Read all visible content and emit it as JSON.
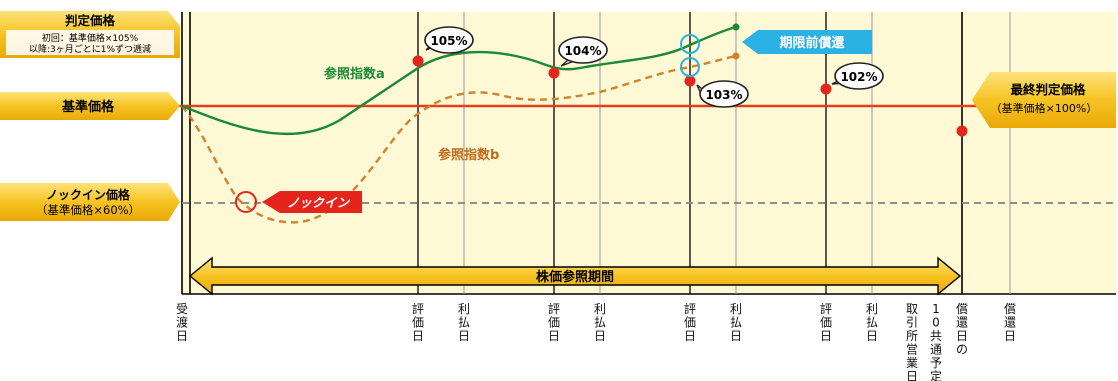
{
  "left_labels": {
    "judgment_title": "判定価格",
    "judgment_line1": "初回：基準価格×105%",
    "judgment_line2": "以降:3ヶ月ごとに1%ずつ逓減",
    "base_price": "基準価格",
    "knockin_line1": "ノックイン価格",
    "knockin_line2": "（基準価格×60%）"
  },
  "right_label": {
    "line1": "最終判定価格",
    "line2": "（基準価格×100%）"
  },
  "series": {
    "a_label": "参照指数a",
    "b_label": "参照指数b"
  },
  "callouts": {
    "c105": "105%",
    "c104": "104%",
    "c103": "103%",
    "c102": "102%"
  },
  "banners": {
    "knockin": "ノックイン",
    "early_redemption": "期限前償還",
    "period": "株価参照期間"
  },
  "axis": {
    "delivery_date": "受渡日",
    "valuation_date": "評価日",
    "payment_date": "利払日",
    "exchange_days_before": "取引所営業日前",
    "ten_common_scheduled": "10共通予定",
    "redemption_date_of": "償還日の",
    "redemption_date": "償還日"
  },
  "colors": {
    "panel": "#fff9d6",
    "gold": "#f5c016",
    "series_a": "#1b8a34",
    "series_b": "#d2822a",
    "base_line": "#e2401c",
    "knockin_red": "#e5241b",
    "cyan": "#2cb1e4"
  }
}
